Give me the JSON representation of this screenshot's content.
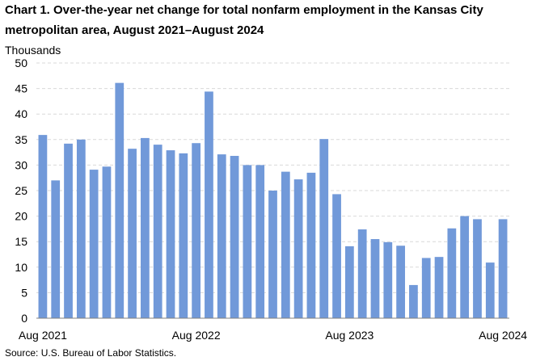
{
  "chart_data": {
    "type": "bar",
    "title_line1": "Chart 1. Over-the-year net change for total nonfarm employment in the Kansas City",
    "title_line2": "metropolitan area, August 2021–August 2024",
    "ylabel": "Thousands",
    "xlabel": "",
    "ylim": [
      0,
      50
    ],
    "yticks": [
      0,
      5,
      10,
      15,
      20,
      25,
      30,
      35,
      40,
      45,
      50
    ],
    "grid": true,
    "bar_color": "#7199d9",
    "categories": [
      "Aug 2021",
      "Sep 2021",
      "Oct 2021",
      "Nov 2021",
      "Dec 2021",
      "Jan 2022",
      "Feb 2022",
      "Mar 2022",
      "Apr 2022",
      "May 2022",
      "Jun 2022",
      "Jul 2022",
      "Aug 2022",
      "Sep 2022",
      "Oct 2022",
      "Nov 2022",
      "Dec 2022",
      "Jan 2023",
      "Feb 2023",
      "Mar 2023",
      "Apr 2023",
      "May 2023",
      "Jun 2023",
      "Jul 2023",
      "Aug 2023",
      "Sep 2023",
      "Oct 2023",
      "Nov 2023",
      "Dec 2023",
      "Jan 2024",
      "Feb 2024",
      "Mar 2024",
      "Apr 2024",
      "May 2024",
      "Jun 2024",
      "Jul 2024",
      "Aug 2024"
    ],
    "values": [
      35.9,
      27.0,
      34.2,
      35.0,
      29.1,
      29.7,
      46.1,
      33.2,
      35.3,
      34.0,
      32.9,
      32.3,
      34.3,
      44.4,
      32.1,
      31.8,
      30.0,
      30.0,
      25.0,
      28.7,
      27.2,
      28.5,
      35.1,
      24.3,
      14.1,
      17.4,
      15.5,
      14.9,
      14.2,
      6.5,
      11.8,
      12.0,
      17.6,
      20.0,
      19.4,
      10.9,
      19.4
    ],
    "xtick_labels": [
      "Aug 2021",
      "Aug 2022",
      "Aug 2023",
      "Aug 2024"
    ],
    "source": "Source: U.S. Bureau of Labor Statistics."
  }
}
